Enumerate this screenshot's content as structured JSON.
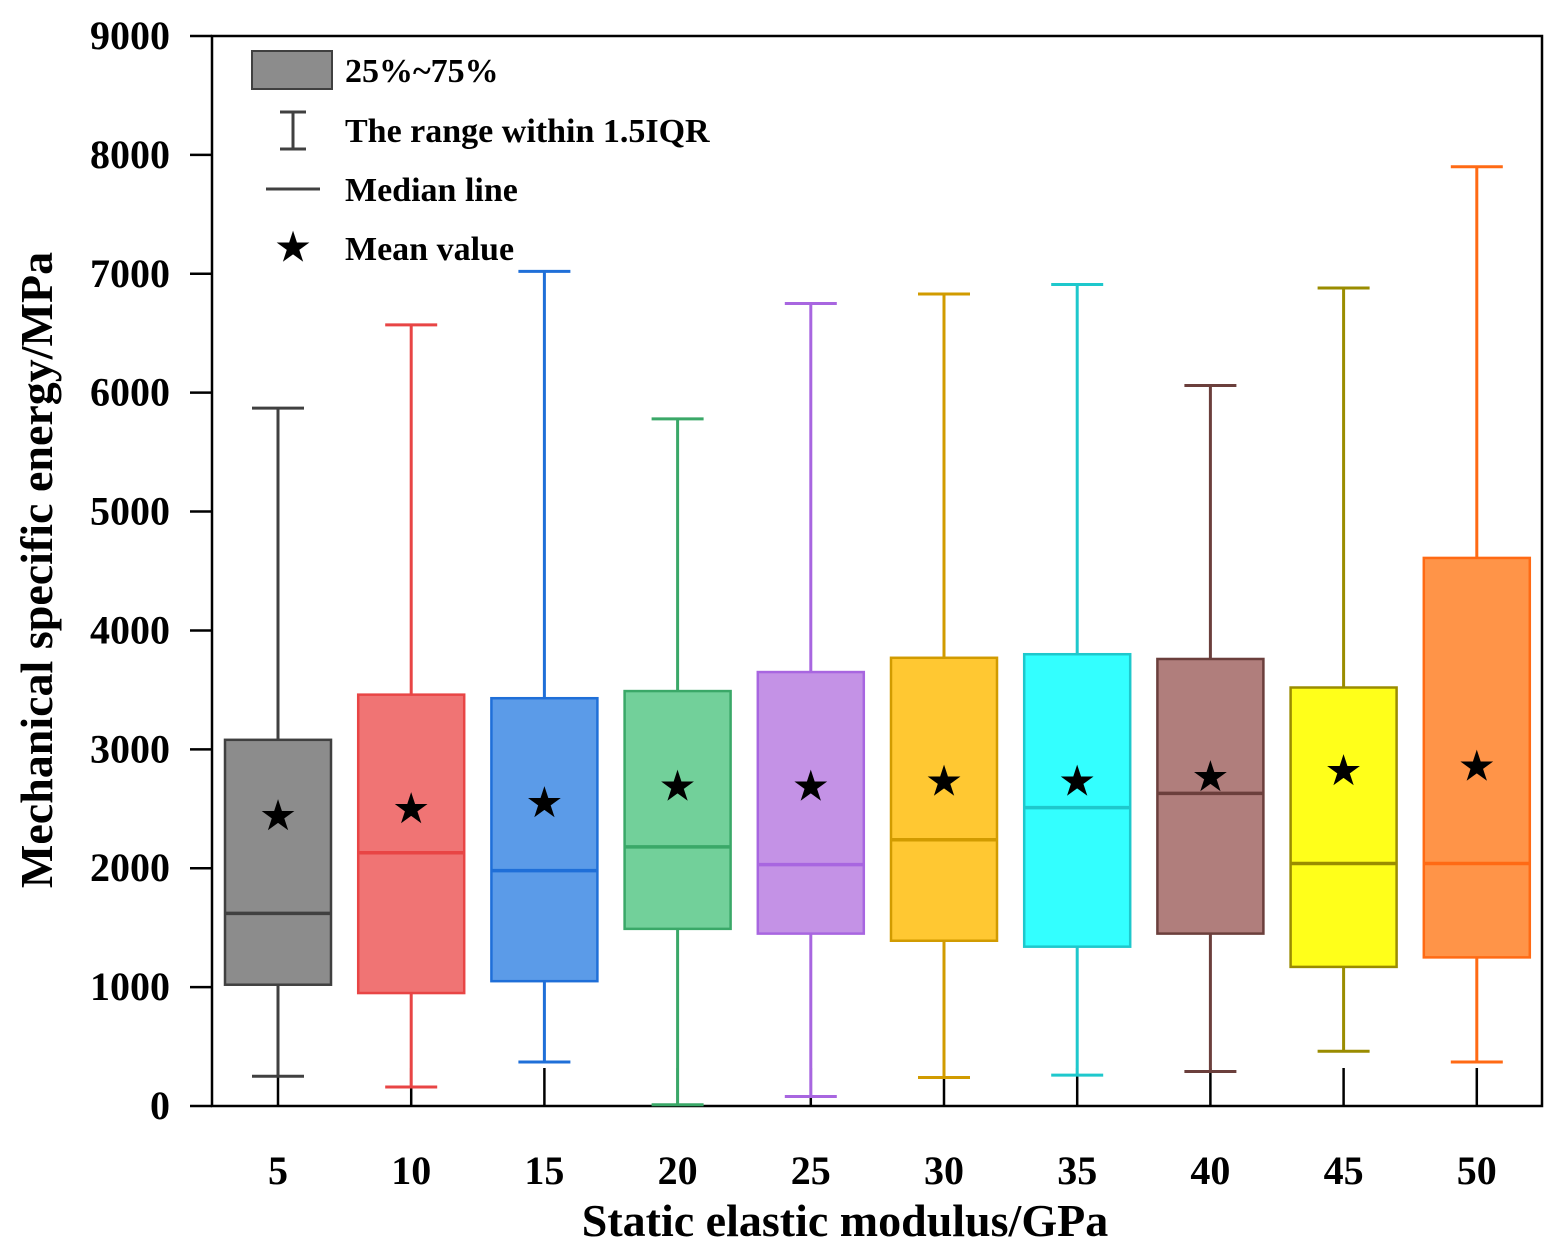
{
  "chart_data": {
    "type": "box",
    "title": "",
    "xlabel": "Static elastic modulus/GPa",
    "ylabel": "Mechanical specific energy/MPa",
    "ylim": [
      0,
      9000
    ],
    "yticks": [
      0,
      1000,
      2000,
      3000,
      4000,
      5000,
      6000,
      7000,
      8000,
      9000
    ],
    "grid": false,
    "legend_position": "top-left",
    "legend": {
      "box": "25%~75%",
      "whisker": "The range within 1.5IQR",
      "median": "Median line",
      "mean": "Mean value"
    },
    "categories": [
      "5",
      "10",
      "15",
      "20",
      "25",
      "30",
      "35",
      "40",
      "45",
      "50"
    ],
    "series": [
      {
        "name": "5",
        "whisker_low": 250,
        "q1": 1020,
        "median": 1620,
        "q3": 3080,
        "whisker_high": 5870,
        "mean": 2450,
        "color": "#8c8c8c",
        "edge": "#404040"
      },
      {
        "name": "10",
        "whisker_low": 160,
        "q1": 950,
        "median": 2130,
        "q3": 3460,
        "whisker_high": 6570,
        "mean": 2510,
        "color": "#f07474",
        "edge": "#e84545"
      },
      {
        "name": "15",
        "whisker_low": 370,
        "q1": 1050,
        "median": 1980,
        "q3": 3430,
        "whisker_high": 7020,
        "mean": 2560,
        "color": "#5b9be8",
        "edge": "#1f6fd8"
      },
      {
        "name": "20",
        "whisker_low": 10,
        "q1": 1490,
        "median": 2180,
        "q3": 3490,
        "whisker_high": 5780,
        "mean": 2700,
        "color": "#72d09a",
        "edge": "#3aa868"
      },
      {
        "name": "25",
        "whisker_low": 80,
        "q1": 1450,
        "median": 2030,
        "q3": 3650,
        "whisker_high": 6750,
        "mean": 2700,
        "color": "#c492e6",
        "edge": "#a866e0"
      },
      {
        "name": "30",
        "whisker_low": 240,
        "q1": 1390,
        "median": 2240,
        "q3": 3770,
        "whisker_high": 6830,
        "mean": 2740,
        "color": "#ffc832",
        "edge": "#d19b00"
      },
      {
        "name": "35",
        "whisker_low": 260,
        "q1": 1340,
        "median": 2510,
        "q3": 3800,
        "whisker_high": 6910,
        "mean": 2740,
        "color": "#33ffff",
        "edge": "#1ec8cc"
      },
      {
        "name": "40",
        "whisker_low": 290,
        "q1": 1450,
        "median": 2630,
        "q3": 3760,
        "whisker_high": 6060,
        "mean": 2780,
        "color": "#b07e7c",
        "edge": "#6b3f3c"
      },
      {
        "name": "45",
        "whisker_low": 460,
        "q1": 1170,
        "median": 2040,
        "q3": 3520,
        "whisker_high": 6880,
        "mean": 2830,
        "color": "#ffff1a",
        "edge": "#9a8c00"
      },
      {
        "name": "50",
        "whisker_low": 370,
        "q1": 1250,
        "median": 2040,
        "q3": 4610,
        "whisker_high": 7900,
        "mean": 2870,
        "color": "#ff9448",
        "edge": "#ff6a14"
      }
    ]
  }
}
